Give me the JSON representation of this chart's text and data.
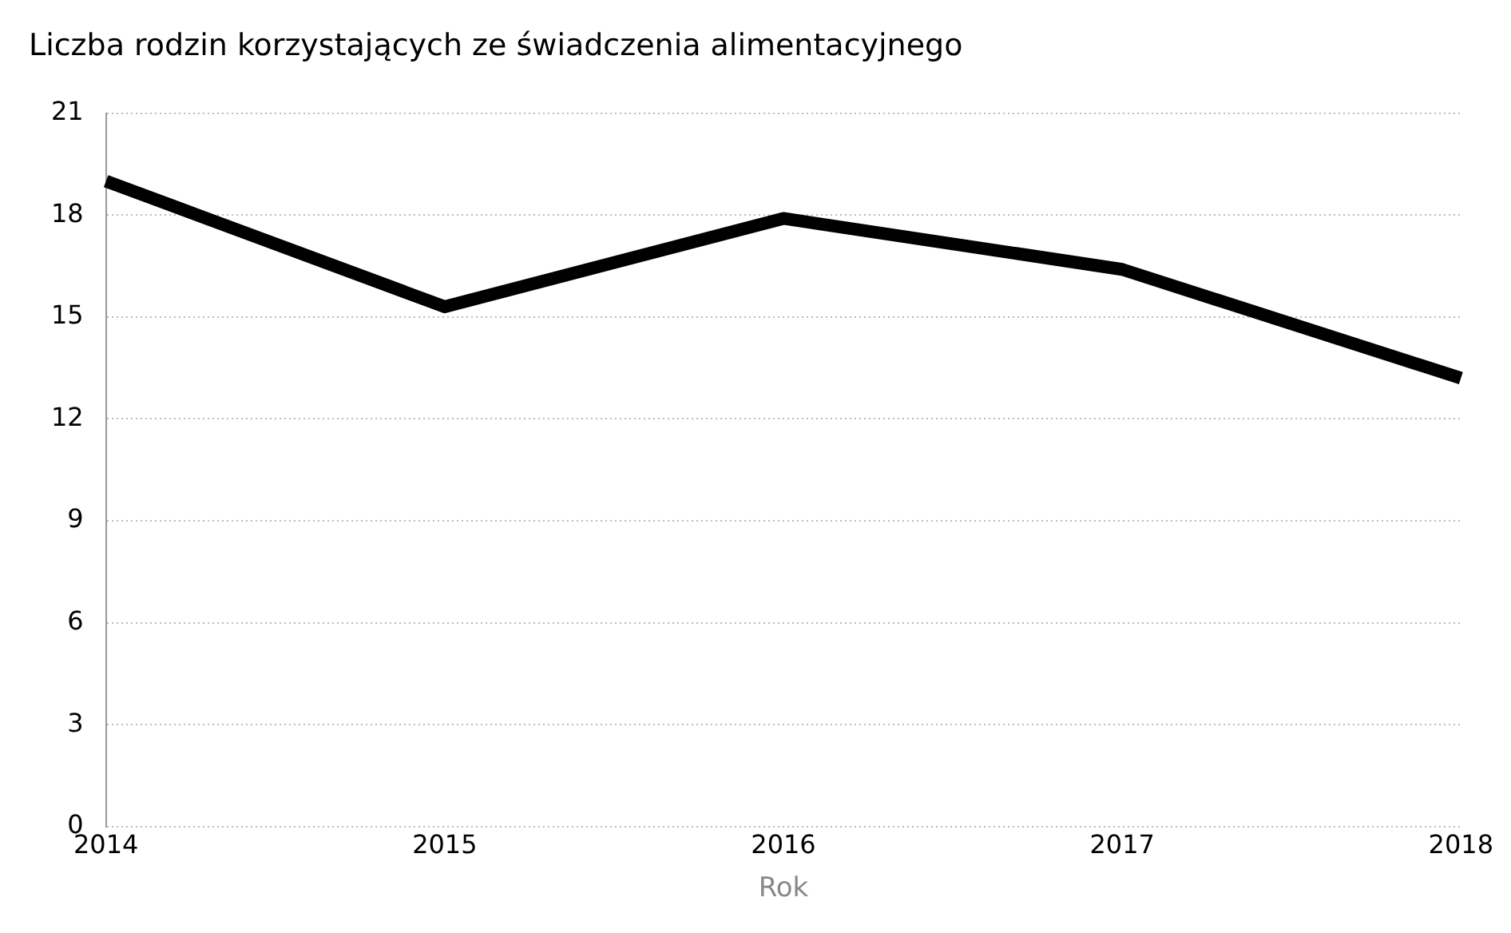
{
  "chart_data": {
    "type": "line",
    "title": "Liczba rodzin korzystających ze świadczenia alimentacyjnego",
    "xlabel": "Rok",
    "categories": [
      "2014",
      "2015",
      "2016",
      "2017",
      "2018"
    ],
    "series": [
      {
        "color": "#000000",
        "values": [
          19,
          15.3,
          17.9,
          16.4,
          13.2
        ]
      }
    ],
    "ylim": [
      0,
      21
    ],
    "yticks": [
      0,
      3,
      6,
      9,
      12,
      15,
      18,
      21
    ],
    "grid": "y",
    "legend": false,
    "marker": "none",
    "line_style": "solid"
  }
}
